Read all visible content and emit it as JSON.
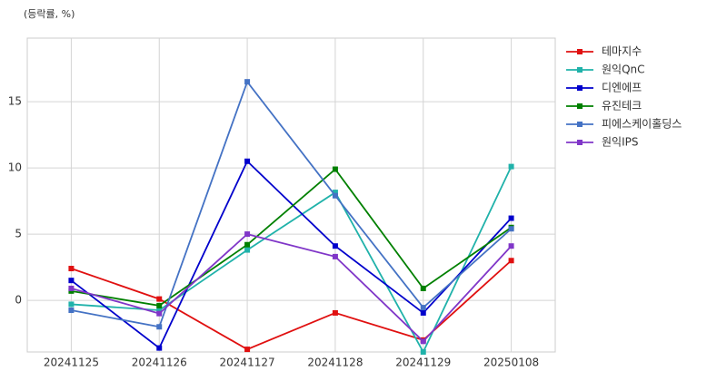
{
  "chart_data": {
    "type": "line",
    "y_label": "(등락률, %)",
    "categories": [
      "20241125",
      "20241126",
      "20241127",
      "20241128",
      "20241129",
      "20250108"
    ],
    "series": [
      {
        "name": "테마지수",
        "color": "#e01010",
        "values": [
          2.4,
          0.1,
          -3.7,
          -0.95,
          -3.0,
          3.0
        ]
      },
      {
        "name": "원익QnC",
        "color": "#20b2aa",
        "values": [
          -0.3,
          -0.75,
          3.8,
          8.15,
          -3.9,
          10.1
        ]
      },
      {
        "name": "디엔에프",
        "color": "#0000cc",
        "values": [
          1.5,
          -3.6,
          10.5,
          4.1,
          -0.95,
          6.2
        ]
      },
      {
        "name": "유진테크",
        "color": "#008000",
        "values": [
          0.7,
          -0.4,
          4.2,
          9.9,
          0.9,
          5.5
        ]
      },
      {
        "name": "피에스케이홀딩스",
        "color": "#4472c4",
        "values": [
          -0.75,
          -2.0,
          16.5,
          7.9,
          -0.55,
          5.4
        ]
      },
      {
        "name": "원익IPS",
        "color": "#8036c8",
        "values": [
          0.9,
          -1.0,
          5.0,
          3.3,
          -3.1,
          4.1
        ]
      }
    ],
    "ylim": [
      -3.9,
      19.8
    ],
    "yticks": [
      0,
      5,
      10,
      15
    ],
    "grid": true,
    "legend": "right"
  }
}
